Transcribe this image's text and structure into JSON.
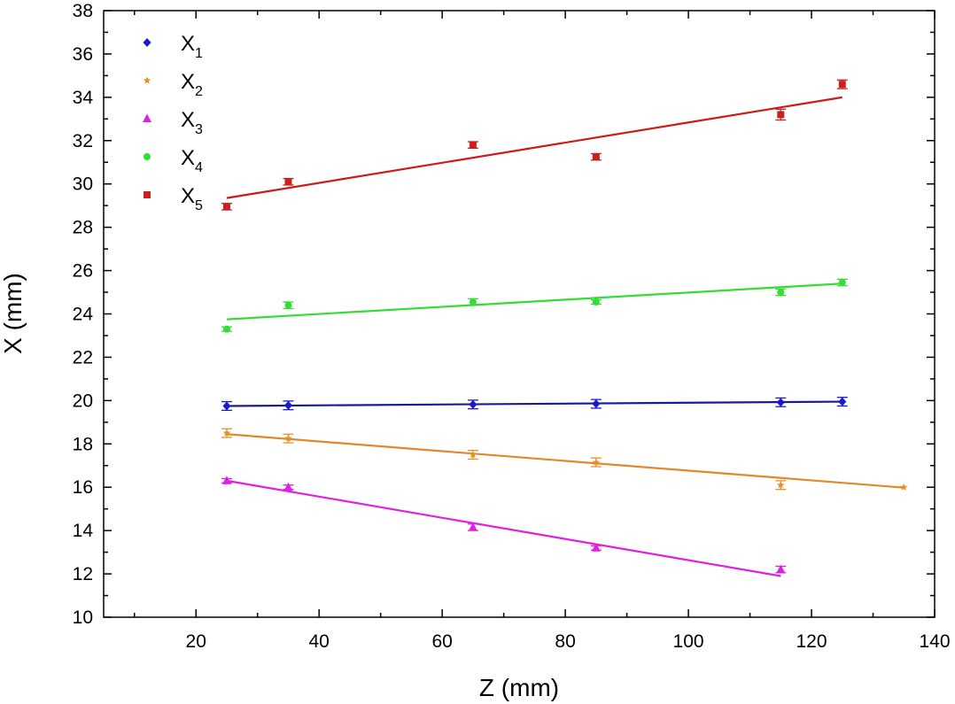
{
  "chart_data": {
    "type": "scatter",
    "xlabel": "Z (mm)",
    "ylabel": "X (mm)",
    "xlim": [
      5,
      140
    ],
    "ylim": [
      10,
      38
    ],
    "xticks": [
      20,
      40,
      60,
      80,
      100,
      120,
      140
    ],
    "xminor": [
      10,
      30,
      50,
      70,
      90,
      110,
      130
    ],
    "yticks": [
      10,
      12,
      14,
      16,
      18,
      20,
      22,
      24,
      26,
      28,
      30,
      32,
      34,
      36,
      38
    ],
    "grid": false,
    "legend_position": "top-left",
    "series": [
      {
        "name": "X",
        "sub": "1",
        "marker": "diamond",
        "color": "#1a1acc",
        "x": [
          25,
          35,
          65,
          85,
          115,
          125
        ],
        "y": [
          19.75,
          19.78,
          19.82,
          19.85,
          19.92,
          19.95
        ],
        "err": [
          0.2,
          0.2,
          0.2,
          0.2,
          0.2,
          0.2
        ],
        "fit": {
          "x": [
            25,
            125
          ],
          "y": [
            19.75,
            19.95
          ],
          "color": "#1a1a99"
        }
      },
      {
        "name": "X",
        "sub": "2",
        "marker": "star",
        "color": "#e8902a",
        "x": [
          25,
          35,
          65,
          85,
          115,
          135
        ],
        "y": [
          18.5,
          18.25,
          17.5,
          17.15,
          16.1,
          16.0
        ],
        "err": [
          0.2,
          0.2,
          0.2,
          0.2,
          0.2,
          0.0
        ],
        "fit": {
          "x": [
            25,
            135
          ],
          "y": [
            18.45,
            15.98
          ],
          "color": "#e0882a"
        }
      },
      {
        "name": "X",
        "sub": "3",
        "marker": "triangle",
        "color": "#e020e0",
        "x": [
          25,
          35,
          65,
          85,
          115
        ],
        "y": [
          16.3,
          16.0,
          14.15,
          13.2,
          12.2
        ],
        "err": [
          0.1,
          0.1,
          0.15,
          0.1,
          0.15
        ],
        "fit": {
          "x": [
            25,
            115
          ],
          "y": [
            16.3,
            11.9
          ],
          "color": "#e020e0"
        }
      },
      {
        "name": "X",
        "sub": "4",
        "marker": "circle",
        "color": "#33dd33",
        "x": [
          25,
          35,
          65,
          85,
          115,
          125
        ],
        "y": [
          23.3,
          24.4,
          24.55,
          24.55,
          25.0,
          25.45
        ],
        "err": [
          0.1,
          0.15,
          0.15,
          0.1,
          0.15,
          0.15
        ],
        "fit": {
          "x": [
            25,
            125
          ],
          "y": [
            23.75,
            25.4
          ],
          "color": "#33dd33"
        }
      },
      {
        "name": "X",
        "sub": "5",
        "marker": "square",
        "color": "#cc2020",
        "x": [
          25,
          35,
          65,
          85,
          115,
          125
        ],
        "y": [
          28.95,
          30.1,
          31.8,
          31.25,
          33.2,
          34.6
        ],
        "err": [
          0.15,
          0.15,
          0.15,
          0.15,
          0.25,
          0.2
        ],
        "fit": {
          "x": [
            25,
            125
          ],
          "y": [
            29.35,
            34.0
          ],
          "color": "#cc1a1a"
        }
      }
    ]
  }
}
